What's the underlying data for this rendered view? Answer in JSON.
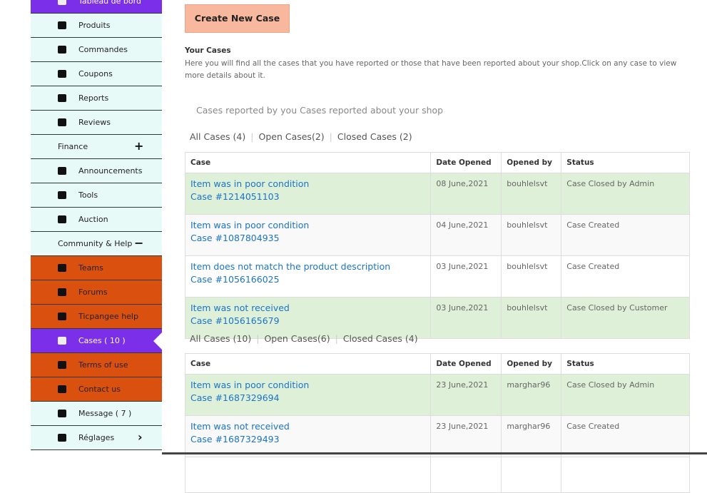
{
  "sidebar": {
    "items": [
      {
        "label": "Tableau de bord",
        "style": "active"
      },
      {
        "label": "Produits",
        "style": "light"
      },
      {
        "label": "Commandes",
        "style": "light"
      },
      {
        "label": "Coupons",
        "style": "light"
      },
      {
        "label": "Reports",
        "style": "light"
      },
      {
        "label": "Reviews",
        "style": "light"
      },
      {
        "label": "Finance",
        "style": "section",
        "extra": "+"
      },
      {
        "label": "Announcements",
        "style": "light"
      },
      {
        "label": "Tools",
        "style": "light"
      },
      {
        "label": "Auction",
        "style": "light"
      },
      {
        "label": "Community & Help",
        "style": "section",
        "extra": "−"
      },
      {
        "label": "Teams",
        "style": "orange"
      },
      {
        "label": "Forums",
        "style": "orange"
      },
      {
        "label": "Ticpangee help",
        "style": "orange"
      },
      {
        "label": "Cases ( 10 )",
        "style": "active"
      },
      {
        "label": "Terms of use",
        "style": "orange"
      },
      {
        "label": "Contact us",
        "style": "orange"
      },
      {
        "label": "Message ( 7 )",
        "style": "light"
      },
      {
        "label": "Réglages",
        "style": "light",
        "extra": "›"
      }
    ]
  },
  "main": {
    "button": "Create New Case",
    "heading": "Your Cases",
    "description": "Here you will find all the cases that you have reported or those that have been reported about your shop.Click on any case to view more details about it.",
    "subtitle": "Cases reported by you Cases reported about your shop",
    "columns": [
      "Case",
      "Date Opened",
      "Opened by",
      "Status"
    ],
    "tables": [
      {
        "tabs": [
          "All Cases (4)",
          "Open Cases(2)",
          "Closed Cases (2)"
        ],
        "rows": [
          {
            "title": "Item was in poor condition",
            "number": "Case #1214051103",
            "date": "08 June,2021",
            "opened_by": "bouhlelsvt",
            "status": "Case Closed by Admin"
          },
          {
            "title": "Item was in poor condition",
            "number": "Case #1087804935",
            "date": "04 June,2021",
            "opened_by": "bouhlelsvt",
            "status": "Case Created"
          },
          {
            "title": "Item does not match the product description",
            "number": "Case #1056166025",
            "date": "03 June,2021",
            "opened_by": "bouhlelsvt",
            "status": "Case Created"
          },
          {
            "title": "Item was not received",
            "number": "Case #1056165679",
            "date": "03 June,2021",
            "opened_by": "bouhlelsvt",
            "status": "Case Closed by Customer"
          }
        ]
      },
      {
        "tabs": [
          "All Cases (10)",
          "Open Cases(6)",
          "Closed Cases (4)"
        ],
        "rows": [
          {
            "title": "Item was in poor condition",
            "number": "Case #1687329694",
            "date": "23 June,2021",
            "opened_by": "marghar96",
            "status": "Case Closed by Admin"
          },
          {
            "title": "Item was not received",
            "number": "Case #1687329493",
            "date": "23 June,2021",
            "opened_by": "marghar96",
            "status": "Case Created"
          }
        ]
      }
    ]
  }
}
